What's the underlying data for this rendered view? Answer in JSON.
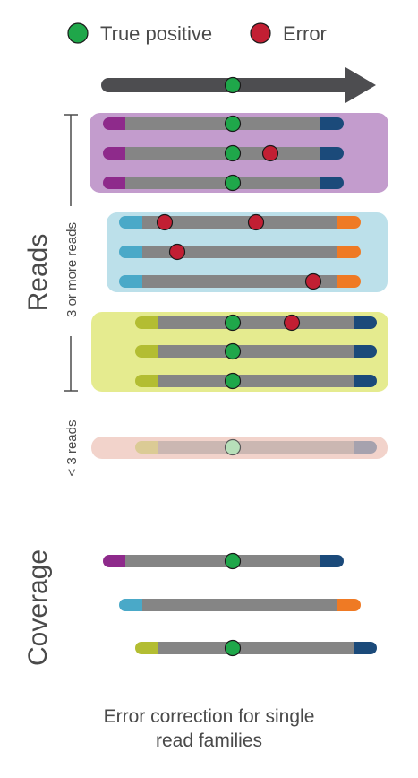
{
  "legend": {
    "true_positive_label": "True positive",
    "error_label": "Error"
  },
  "side_labels": {
    "reads": "Reads",
    "three_or_more": "3 or more reads",
    "less_than_three": "< 3 reads",
    "coverage": "Coverage"
  },
  "caption": {
    "line1": "Error correction for single",
    "line2": "read families"
  },
  "colors": {
    "true_positive": "#1fa74a",
    "error": "#c21f33",
    "arrow": "#4d4d50",
    "read_body": "#858585",
    "family_purple_bg": "#c39ccd",
    "family_blue_bg": "#bce0ea",
    "family_yellow_bg": "#e5eb8f",
    "family_peach_bg": "#f2d3cb",
    "end_purple": "#8e2a8b",
    "end_navy": "#1b4a7a",
    "end_lightblue": "#4aa9c8",
    "end_orange": "#ef7a24",
    "end_olive": "#b3bd32"
  }
}
